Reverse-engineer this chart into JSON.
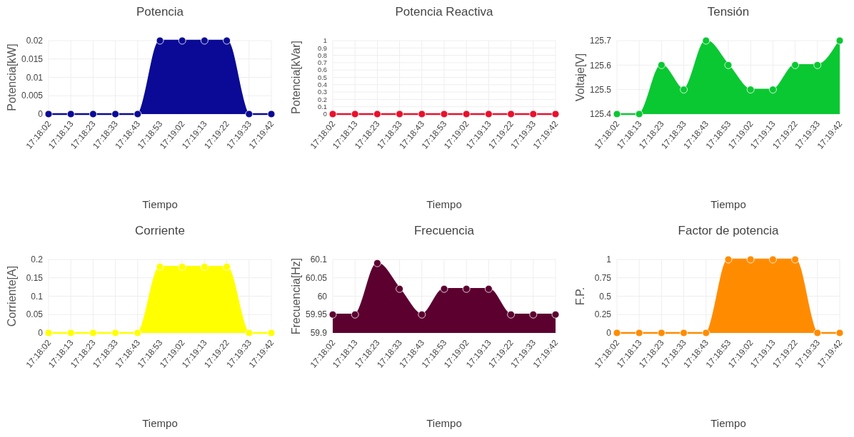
{
  "chart_data": [
    {
      "type": "area",
      "title": "Potencia",
      "xlabel": "Tiempo",
      "ylabel": "Potencia[kW]",
      "categories": [
        "17:18:02",
        "17:18:13",
        "17:18:23",
        "17:18:33",
        "17:18:43",
        "17:18:53",
        "17:19:02",
        "17:19:13",
        "17:19:22",
        "17:19:33",
        "17:19:42"
      ],
      "series": [
        {
          "color": "#0a0a96",
          "values": [
            0,
            0,
            0,
            0,
            0,
            0.02,
            0.02,
            0.02,
            0.02,
            0,
            0
          ]
        }
      ],
      "ylim": [
        0,
        0.02
      ],
      "yticks": [
        0,
        0.005,
        0.01,
        0.015,
        0.02
      ],
      "grid": true,
      "marker": "circle"
    },
    {
      "type": "line",
      "title": "Potencia Reactiva",
      "xlabel": "Tiempo",
      "ylabel": "Potencia[kVar]",
      "categories": [
        "17:18:02",
        "17:18:13",
        "17:18:23",
        "17:18:33",
        "17:18:43",
        "17:18:53",
        "17:19:02",
        "17:19:13",
        "17:19:22",
        "17:19:33",
        "17:19:42"
      ],
      "series": [
        {
          "color": "#e8112d",
          "values": [
            0,
            0,
            0,
            0,
            0,
            0,
            0,
            0,
            0,
            0,
            0
          ]
        }
      ],
      "ylim": [
        0,
        1
      ],
      "yticks": [
        0,
        0.1,
        0.2,
        0.3,
        0.4,
        0.5,
        0.6,
        0.7,
        0.8,
        0.9,
        1
      ],
      "grid": true,
      "marker": "circle"
    },
    {
      "type": "area",
      "title": "Tensión",
      "xlabel": "Tiempo",
      "ylabel": "Voltaje[V]",
      "categories": [
        "17:18:02",
        "17:18:13",
        "17:18:23",
        "17:18:33",
        "17:18:43",
        "17:18:53",
        "17:19:02",
        "17:19:13",
        "17:19:22",
        "17:19:33",
        "17:19:42"
      ],
      "series": [
        {
          "color": "#0ac832",
          "values": [
            125.4,
            125.4,
            125.6,
            125.5,
            125.7,
            125.6,
            125.5,
            125.5,
            125.6,
            125.6,
            125.7
          ]
        }
      ],
      "ylim": [
        125.4,
        125.7
      ],
      "yticks": [
        125.4,
        125.5,
        125.6,
        125.7
      ],
      "grid": true,
      "marker": "circle"
    },
    {
      "type": "area",
      "title": "Corriente",
      "xlabel": "Tiempo",
      "ylabel": "Corriente[A]",
      "categories": [
        "17:18:02",
        "17:18:13",
        "17:18:23",
        "17:18:33",
        "17:18:43",
        "17:18:53",
        "17:19:02",
        "17:19:13",
        "17:19:22",
        "17:19:33",
        "17:19:42"
      ],
      "series": [
        {
          "color": "#ffff00",
          "values": [
            0,
            0,
            0,
            0,
            0,
            0.18,
            0.18,
            0.18,
            0.18,
            0,
            0
          ]
        }
      ],
      "ylim": [
        0,
        0.2
      ],
      "yticks": [
        0,
        0.05,
        0.1,
        0.15,
        0.2
      ],
      "grid": true,
      "marker": "circle"
    },
    {
      "type": "area",
      "title": "Frecuencia",
      "xlabel": "Tiempo",
      "ylabel": "Frecuencia[Hz]",
      "categories": [
        "17:18:02",
        "17:18:13",
        "17:18:23",
        "17:18:33",
        "17:18:43",
        "17:18:53",
        "17:19:02",
        "17:19:13",
        "17:19:22",
        "17:19:33",
        "17:19:42"
      ],
      "series": [
        {
          "color": "#5c0030",
          "values": [
            59.95,
            59.95,
            60.09,
            60.02,
            59.95,
            60.02,
            60.02,
            60.02,
            59.95,
            59.95,
            59.95
          ]
        }
      ],
      "ylim": [
        59.9,
        60.1
      ],
      "yticks": [
        59.9,
        59.95,
        60,
        60.05,
        60.1
      ],
      "grid": true,
      "marker": "circle"
    },
    {
      "type": "area",
      "title": "Factor de potencia",
      "xlabel": "Tiempo",
      "ylabel": "F.P.",
      "categories": [
        "17:18:02",
        "17:18:13",
        "17:18:23",
        "17:18:33",
        "17:18:43",
        "17:18:53",
        "17:19:02",
        "17:19:13",
        "17:19:22",
        "17:19:33",
        "17:19:42"
      ],
      "series": [
        {
          "color": "#ff8c00",
          "values": [
            0,
            0,
            0,
            0,
            0,
            1,
            1,
            1,
            1,
            0,
            0
          ]
        }
      ],
      "ylim": [
        0,
        1
      ],
      "yticks": [
        0,
        0.25,
        0.5,
        0.75,
        1
      ],
      "grid": true,
      "marker": "circle"
    }
  ]
}
